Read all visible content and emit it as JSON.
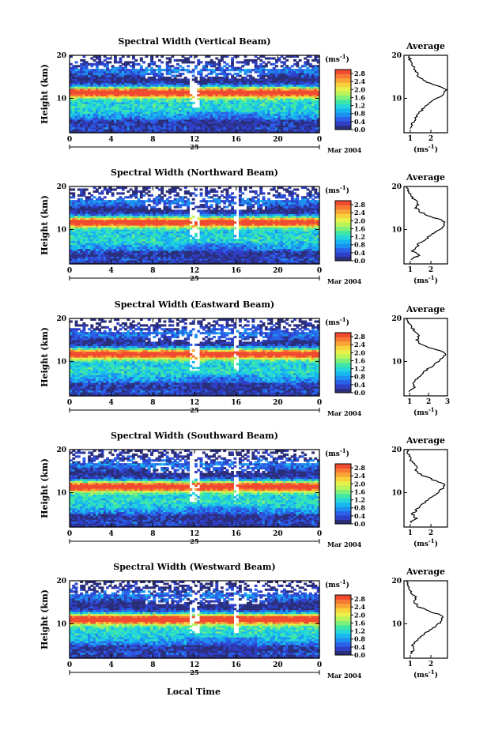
{
  "figure": {
    "y_axis_label": "Height (km)",
    "x_axis_label": "Local Time",
    "date_day": "25",
    "date_month_year": "Mar 2004",
    "colorbar_unit": "(ms",
    "colorbar_unit_exp": "-1",
    "colorbar_unit_close": ")",
    "average_title": "Average",
    "average_xunit": "(ms",
    "average_xunit_exp": "-1",
    "average_xunit_close": ")"
  },
  "chart_data": [
    {
      "type": "heatmap",
      "title": "Spectral Width (Vertical Beam)",
      "x_ticks": [
        "0",
        "4",
        "8",
        "12",
        "16",
        "20",
        "0"
      ],
      "xlim": [
        0,
        24
      ],
      "y_ticks": [
        "20",
        "10"
      ],
      "ylim": [
        2,
        20
      ],
      "colorbar_ticks": [
        "2.8",
        "2.4",
        "2.0",
        "1.6",
        "1.2",
        "0.8",
        "0.4",
        "0.0"
      ],
      "colorbar_range": [
        0,
        3.0
      ],
      "avg_x_ticks": [
        "1",
        "2"
      ],
      "avg_xlim": [
        0.7,
        2.8
      ],
      "avg_profile": {
        "height": [
          3,
          4,
          5,
          6,
          7,
          8,
          9,
          10,
          11,
          12,
          13,
          14,
          15,
          16,
          17,
          18,
          19,
          20
        ],
        "width": [
          1.05,
          1.1,
          1.2,
          1.35,
          1.5,
          1.7,
          2.0,
          2.3,
          2.6,
          2.7,
          2.3,
          1.7,
          1.4,
          1.3,
          1.2,
          1.1,
          1.0,
          0.95
        ]
      }
    },
    {
      "type": "heatmap",
      "title": "Spectral Width (Northward Beam)",
      "x_ticks": [
        "0",
        "4",
        "8",
        "12",
        "16",
        "20",
        "0"
      ],
      "xlim": [
        0,
        24
      ],
      "y_ticks": [
        "20",
        "10"
      ],
      "ylim": [
        2,
        20
      ],
      "colorbar_ticks": [
        "2.8",
        "2.4",
        "2.0",
        "1.6",
        "1.2",
        "0.8",
        "0.4",
        "0.0"
      ],
      "colorbar_range": [
        0,
        3.0
      ],
      "avg_x_ticks": [
        "1",
        "2"
      ],
      "avg_xlim": [
        0.7,
        2.8
      ],
      "avg_profile": {
        "height": [
          3,
          4,
          5,
          6,
          7,
          8,
          9,
          10,
          11,
          12,
          13,
          14,
          15,
          16,
          17,
          18,
          19,
          20
        ],
        "width": [
          1.0,
          1.4,
          1.1,
          1.3,
          1.5,
          1.8,
          2.1,
          2.4,
          2.7,
          2.6,
          2.0,
          1.5,
          1.3,
          1.4,
          1.2,
          1.0,
          0.9,
          0.85
        ]
      }
    },
    {
      "type": "heatmap",
      "title": "Spectral Width (Eastward Beam)",
      "x_ticks": [
        "0",
        "4",
        "8",
        "12",
        "16",
        "20",
        "0"
      ],
      "xlim": [
        0,
        24
      ],
      "y_ticks": [
        "20",
        "10"
      ],
      "ylim": [
        2,
        20
      ],
      "colorbar_ticks": [
        "2.8",
        "2.4",
        "2.0",
        "1.6",
        "1.2",
        "0.8",
        "0.4",
        "0.0"
      ],
      "colorbar_range": [
        0,
        3.0
      ],
      "avg_x_ticks": [
        "1",
        "2",
        "3"
      ],
      "avg_xlim": [
        0.7,
        3.0
      ],
      "avg_profile": {
        "height": [
          3,
          4,
          5,
          6,
          7,
          8,
          9,
          10,
          11,
          12,
          13,
          14,
          15,
          16,
          17,
          18,
          19,
          20
        ],
        "width": [
          1.0,
          1.3,
          1.2,
          1.4,
          1.6,
          1.9,
          2.2,
          2.5,
          2.8,
          2.9,
          2.2,
          1.6,
          1.4,
          1.5,
          1.3,
          1.1,
          0.95,
          0.9
        ]
      }
    },
    {
      "type": "heatmap",
      "title": "Spectral Width (Southward Beam)",
      "x_ticks": [
        "0",
        "4",
        "8",
        "12",
        "16",
        "20",
        "0"
      ],
      "xlim": [
        0,
        24
      ],
      "y_ticks": [
        "20",
        "10"
      ],
      "ylim": [
        2,
        20
      ],
      "colorbar_ticks": [
        "2.8",
        "2.4",
        "2.0",
        "1.6",
        "1.2",
        "0.8",
        "0.4",
        "0.0"
      ],
      "colorbar_range": [
        0,
        3.0
      ],
      "avg_x_ticks": [
        "1",
        "2"
      ],
      "avg_xlim": [
        0.7,
        2.8
      ],
      "avg_profile": {
        "height": [
          3,
          4,
          5,
          6,
          7,
          8,
          9,
          10,
          11,
          12,
          13,
          14,
          15,
          16,
          17,
          18,
          19,
          20
        ],
        "width": [
          1.0,
          1.3,
          1.1,
          1.3,
          1.5,
          1.8,
          2.0,
          2.3,
          2.6,
          2.7,
          2.1,
          1.6,
          1.3,
          1.3,
          1.1,
          1.0,
          0.9,
          0.85
        ]
      }
    },
    {
      "type": "heatmap",
      "title": "Spectral Width (Westward Beam)",
      "x_ticks": [
        "0",
        "4",
        "8",
        "12",
        "16",
        "20",
        "0"
      ],
      "xlim": [
        0,
        24
      ],
      "y_ticks": [
        "20",
        "10"
      ],
      "ylim": [
        2,
        20
      ],
      "colorbar_ticks": [
        "2.8",
        "2.4",
        "2.0",
        "1.6",
        "1.2",
        "0.8",
        "0.4",
        "0.0"
      ],
      "colorbar_range": [
        0,
        3.0
      ],
      "avg_x_ticks": [
        "1",
        "2"
      ],
      "avg_xlim": [
        0.7,
        2.8
      ],
      "avg_profile": {
        "height": [
          3,
          4,
          5,
          6,
          7,
          8,
          9,
          10,
          11,
          12,
          13,
          14,
          15,
          16,
          17,
          18,
          19,
          20
        ],
        "width": [
          1.0,
          1.2,
          1.1,
          1.3,
          1.5,
          1.8,
          2.1,
          2.4,
          2.6,
          2.5,
          1.9,
          1.4,
          1.2,
          1.3,
          1.1,
          0.95,
          0.9,
          0.85
        ]
      }
    }
  ]
}
